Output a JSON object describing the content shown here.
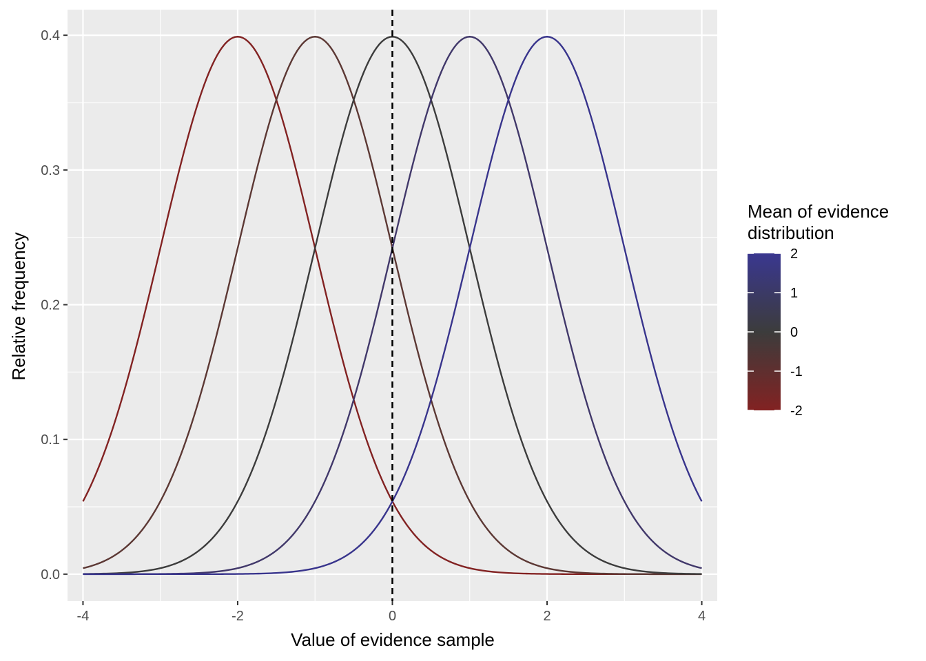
{
  "chart_data": {
    "type": "line",
    "xlabel": "Value of evidence sample",
    "ylabel": "Relative frequency",
    "xlim": [
      -4.2,
      4.2
    ],
    "ylim": [
      -0.02,
      0.419
    ],
    "x_ticks": [
      -4,
      -2,
      0,
      2,
      4
    ],
    "x_tick_labels": [
      "-4",
      "-2",
      "0",
      "2",
      "4"
    ],
    "y_ticks": [
      0.0,
      0.1,
      0.2,
      0.3,
      0.4
    ],
    "y_tick_labels": [
      "0.0",
      "0.1",
      "0.2",
      "0.3",
      "0.4"
    ],
    "x_minor": [
      -3,
      -1,
      1,
      3
    ],
    "y_minor": [
      0.05,
      0.15,
      0.25,
      0.35
    ],
    "grid": true,
    "background": "#ebebeb",
    "x_range": [
      -4,
      4
    ],
    "series": [
      {
        "mean": -2,
        "sd": 1,
        "color": "#822222"
      },
      {
        "mean": -1,
        "sd": 1,
        "color": "#5c3834"
      },
      {
        "mean": 0,
        "sd": 1,
        "color": "#3c3c3c"
      },
      {
        "mean": 1,
        "sd": 1,
        "color": "#41386a"
      },
      {
        "mean": 2,
        "sd": 1,
        "color": "#38348c"
      }
    ],
    "reference_line": {
      "x": 0,
      "style": "dashed",
      "color": "#000000"
    },
    "legend": {
      "title_lines": [
        "Mean of evidence",
        "distribution"
      ],
      "position": "right",
      "type": "colorbar",
      "low_color": "#822222",
      "mid_color": "#3c3c3c",
      "high_color": "#3a3790",
      "limits": [
        -2,
        2
      ],
      "breaks": [
        -2,
        -1,
        0,
        1,
        2
      ],
      "break_labels": [
        "-2",
        "-1",
        "0",
        "1",
        "2"
      ]
    }
  }
}
